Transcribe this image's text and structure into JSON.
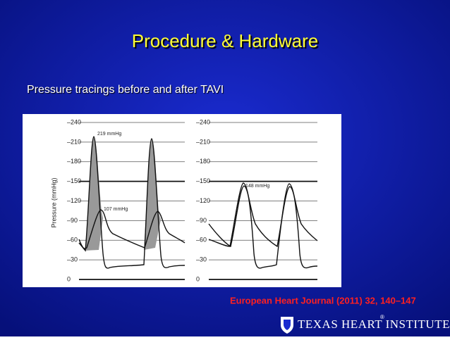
{
  "header": {
    "title": "Procedure & Hardware"
  },
  "body": {
    "text": "Pressure tracings before and after TAVI"
  },
  "figure": {
    "y_axis_label": "Pressure (mmHg)",
    "left_panel": {
      "ticks": [
        "–240",
        "–210",
        "–180",
        "–150",
        "–120",
        "–90",
        "–60",
        "–30",
        "0"
      ],
      "annotations": [
        "219 mmHg",
        "107 mmHg"
      ]
    },
    "right_panel": {
      "ticks": [
        "–240",
        "–210",
        "–180",
        "–150",
        "–120",
        "–90",
        "–60",
        "–30",
        "0"
      ],
      "annotations": [
        "148 mmHg"
      ]
    }
  },
  "footer": {
    "citation": "European Heart Journal (2011) 32, 140–147",
    "logo": "Texas Heart Institute",
    "registered": "®"
  }
}
